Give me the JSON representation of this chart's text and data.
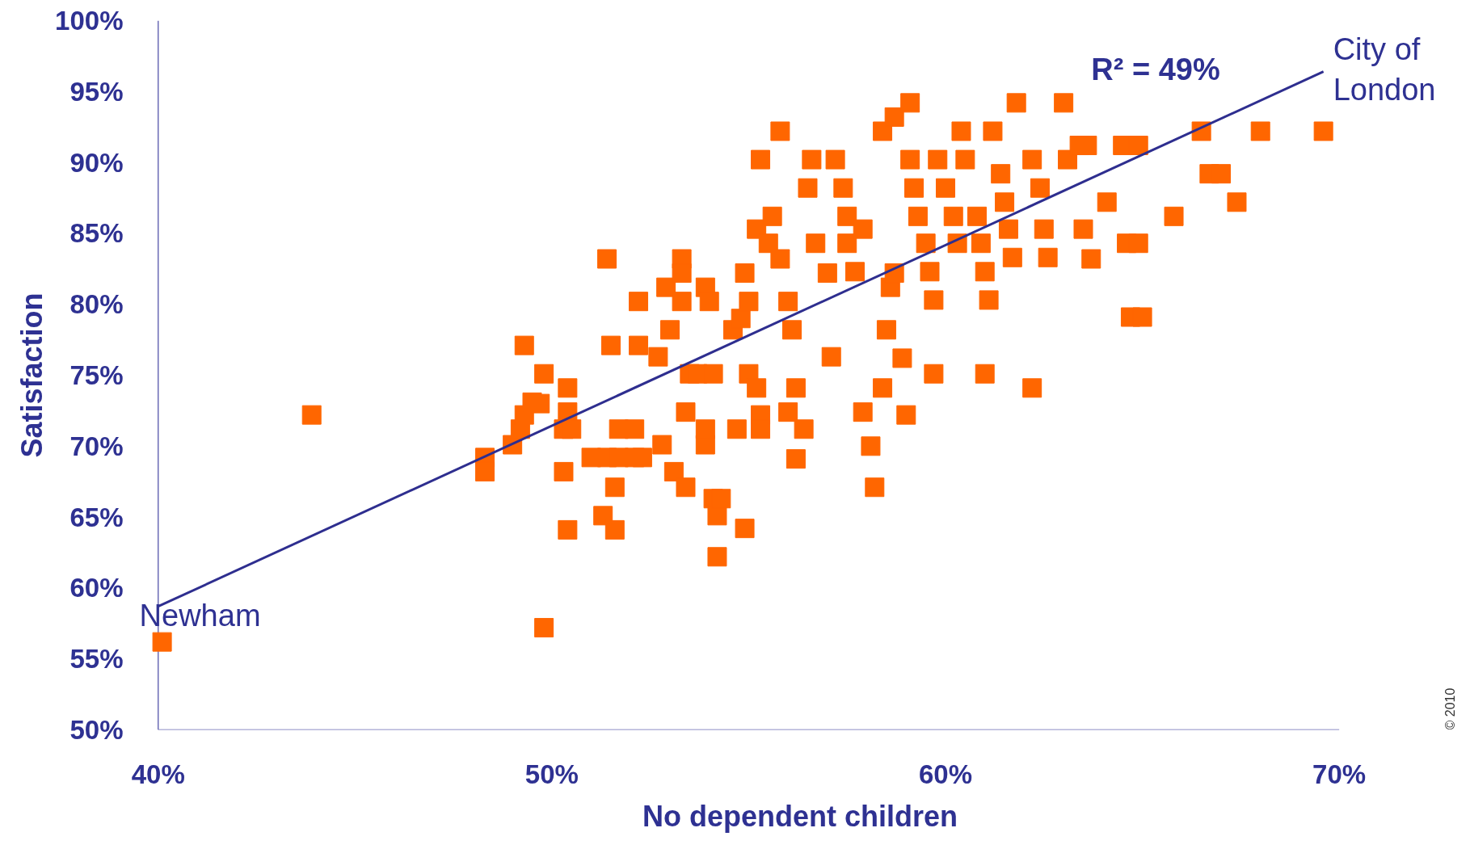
{
  "chart_data": {
    "type": "scatter",
    "xlabel": "No dependent children",
    "ylabel": "Satisfaction",
    "xlim": [
      40,
      70
    ],
    "ylim": [
      50,
      100
    ],
    "xticks": [
      {
        "value": 40,
        "label": "40%"
      },
      {
        "value": 50,
        "label": "50%"
      },
      {
        "value": 60,
        "label": "60%"
      },
      {
        "value": 70,
        "label": "70%"
      }
    ],
    "yticks": [
      {
        "value": 50,
        "label": "50%"
      },
      {
        "value": 55,
        "label": "55%"
      },
      {
        "value": 60,
        "label": "60%"
      },
      {
        "value": 65,
        "label": "65%"
      },
      {
        "value": 70,
        "label": "70%"
      },
      {
        "value": 75,
        "label": "75%"
      },
      {
        "value": 80,
        "label": "80%"
      },
      {
        "value": 85,
        "label": "85%"
      },
      {
        "value": 90,
        "label": "90%"
      },
      {
        "value": 95,
        "label": "95%"
      },
      {
        "value": 100,
        "label": "100%"
      }
    ],
    "line_style": "solid",
    "series": [
      {
        "type": "scatter",
        "color": "#ff6600",
        "marker": "square",
        "x": [
          40.1,
          43.9,
          49.8,
          49.3,
          49.8,
          49.0,
          49.2,
          49.3,
          49.5,
          49.7,
          48.3,
          48.3,
          50.4,
          50.4,
          50.3,
          50.5,
          50.3,
          50.4,
          51.4,
          51.5,
          51.0,
          51.4,
          51.7,
          52.1,
          51.3,
          51.6,
          51.6,
          51.7,
          52.1,
          52.3,
          52.2,
          52.2,
          52.7,
          52.8,
          52.9,
          53.0,
          53.1,
          53.4,
          53.3,
          53.3,
          53.3,
          53.5,
          53.4,
          53.7,
          53.9,
          54.1,
          53.9,
          53.9,
          54.0,
          54.1,
          54.2,
          54.3,
          54.2,
          54.6,
          54.8,
          54.7,
          54.9,
          54.9,
          55.0,
          55.0,
          55.2,
          55.3,
          55.3,
          55.2,
          55.3,
          55.5,
          55.6,
          55.8,
          55.8,
          56.0,
          56.1,
          56.2,
          56.0,
          56.4,
          56.2,
          56.5,
          56.6,
          56.7,
          57.0,
          57.1,
          57.2,
          57.4,
          57.5,
          57.5,
          57.7,
          57.9,
          57.9,
          58.1,
          58.2,
          58.4,
          58.5,
          58.6,
          58.7,
          58.9,
          59.0,
          58.4,
          58.7,
          59.1,
          59.1,
          59.2,
          59.3,
          59.5,
          59.6,
          59.7,
          59.7,
          59.8,
          60.0,
          60.2,
          60.3,
          60.4,
          60.5,
          60.8,
          60.9,
          61.0,
          61.1,
          61.0,
          61.2,
          61.4,
          61.5,
          61.6,
          61.7,
          61.8,
          62.2,
          62.2,
          62.4,
          62.5,
          62.6,
          63.0,
          63.1,
          63.4,
          63.5,
          63.6,
          63.7,
          64.1,
          64.5,
          64.6,
          64.7,
          64.9,
          64.9,
          65.0,
          65.8,
          66.5,
          66.7,
          67.0,
          67.4,
          68.0,
          69.6
        ],
        "values": [
          56.2,
          72.2,
          57.2,
          77.1,
          75.1,
          70.1,
          71.2,
          72.2,
          73.1,
          73.0,
          69.2,
          68.2,
          74.1,
          72.4,
          71.2,
          71.2,
          68.2,
          64.1,
          83.2,
          77.1,
          69.2,
          69.2,
          69.2,
          69.2,
          65.1,
          64.1,
          67.1,
          71.2,
          71.2,
          69.2,
          80.2,
          77.1,
          76.3,
          70.1,
          81.2,
          78.2,
          68.2,
          67.1,
          83.2,
          82.2,
          80.2,
          75.1,
          72.4,
          75.1,
          70.1,
          75.1,
          71.2,
          81.2,
          80.2,
          66.3,
          65.1,
          66.3,
          62.2,
          78.2,
          79.0,
          71.2,
          64.2,
          82.2,
          80.2,
          75.1,
          74.1,
          72.2,
          71.2,
          85.3,
          90.2,
          84.3,
          86.2,
          92.2,
          83.2,
          80.2,
          78.2,
          74.1,
          72.4,
          71.2,
          69.1,
          88.2,
          90.2,
          84.3,
          82.2,
          76.3,
          90.2,
          88.2,
          86.2,
          84.3,
          82.3,
          85.3,
          72.4,
          70.0,
          67.1,
          74.1,
          78.2,
          81.2,
          82.2,
          76.2,
          72.2,
          92.2,
          93.2,
          94.2,
          90.2,
          88.2,
          86.2,
          84.3,
          82.3,
          80.3,
          75.1,
          90.2,
          88.2,
          86.2,
          84.3,
          92.2,
          90.2,
          86.2,
          84.3,
          82.3,
          80.3,
          75.1,
          92.2,
          89.2,
          87.2,
          85.3,
          83.3,
          94.2,
          90.2,
          74.1,
          88.2,
          85.3,
          83.3,
          94.2,
          90.2,
          91.2,
          85.3,
          91.2,
          83.2,
          87.2,
          91.2,
          84.3,
          79.1,
          91.2,
          84.3,
          79.1,
          86.2,
          92.2,
          89.2,
          89.2,
          87.2,
          92.2,
          92.2
        ]
      },
      {
        "type": "line",
        "color": "#2e2e8f",
        "x": [
          40,
          69.6
        ],
        "values": [
          58.7,
          96.4
        ]
      }
    ],
    "annotations": [
      "R² = 49%",
      {
        "text": "Newham",
        "x": 40.1,
        "y": 56.2
      },
      {
        "text": "City of\nLondon",
        "x": 69.6,
        "y": 92.2
      },
      "© 2010"
    ]
  }
}
